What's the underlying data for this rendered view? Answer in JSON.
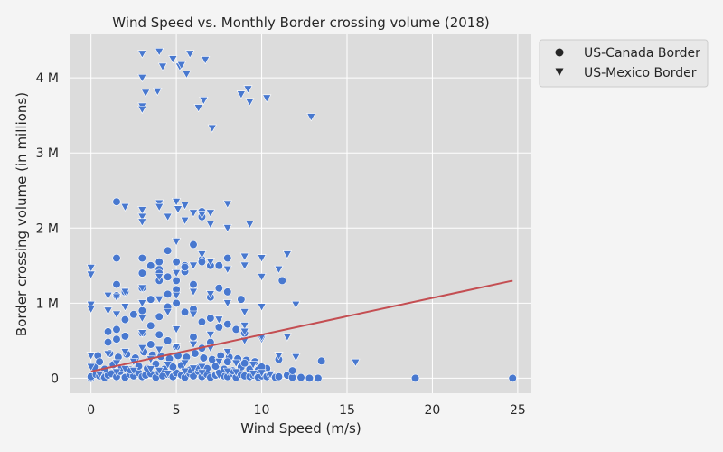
{
  "chart_data": {
    "type": "scatter",
    "title": "Wind Speed vs. Monthly Border crossing volume (2018)",
    "xlabel": "Wind Speed (m/s)",
    "ylabel": "Border crossing volume (in millions)",
    "xlim": [
      -1.2,
      25.8
    ],
    "ylim": [
      -0.2,
      4.58
    ],
    "x_ticks": [
      0,
      5,
      10,
      15,
      20,
      25
    ],
    "x_tick_labels": [
      "0",
      "5",
      "10",
      "15",
      "20",
      "25"
    ],
    "y_ticks": [
      0,
      1,
      2,
      3,
      4
    ],
    "y_tick_labels": [
      "0",
      "1 M",
      "2 M",
      "3 M",
      "4 M"
    ],
    "grid": true,
    "legend_position": "outside-top-right",
    "colors": {
      "points": "#4878cf",
      "trend": "#c44e52",
      "plot_bg": "#dcdcdc",
      "page_bg": "#f4f4f4",
      "grid": "#ffffff"
    },
    "series": [
      {
        "name": "US-Canada Border",
        "marker": "circle",
        "x": [
          0.0,
          0.0,
          0.3,
          0.5,
          0.6,
          0.8,
          1.0,
          1.2,
          1.5,
          1.7,
          2.0,
          2.3,
          2.5,
          2.8,
          3.0,
          3.2,
          3.5,
          3.8,
          4.0,
          4.2,
          4.5,
          4.8,
          5.0,
          5.3,
          5.5,
          5.8,
          6.0,
          6.3,
          6.5,
          6.8,
          7.0,
          7.3,
          7.5,
          7.8,
          8.0,
          8.3,
          8.5,
          8.8,
          9.0,
          9.3,
          9.5,
          9.8,
          10.0,
          10.3,
          10.5,
          10.8,
          11.0,
          11.5,
          11.8,
          12.3,
          12.8,
          13.3,
          0.2,
          0.8,
          1.3,
          1.8,
          2.3,
          2.8,
          3.3,
          3.8,
          4.3,
          4.8,
          5.3,
          5.8,
          6.3,
          6.8,
          7.3,
          7.8,
          8.3,
          8.8,
          9.3,
          9.8,
          10.3,
          11.8,
          0.4,
          1.1,
          1.6,
          2.1,
          2.6,
          3.1,
          3.6,
          4.1,
          4.6,
          5.1,
          5.6,
          6.1,
          6.6,
          7.1,
          7.6,
          8.1,
          8.6,
          9.1,
          9.6,
          0.5,
          1.0,
          1.5,
          2.0,
          3.0,
          3.5,
          4.0,
          4.5,
          5.0,
          6.0,
          6.5,
          7.0,
          8.0,
          9.0,
          10.0,
          11.0,
          13.5,
          1.0,
          1.5,
          2.0,
          2.5,
          3.0,
          3.5,
          4.0,
          4.5,
          5.0,
          5.5,
          6.0,
          6.5,
          7.0,
          7.5,
          8.0,
          8.5,
          9.0,
          1.5,
          2.0,
          3.0,
          3.5,
          4.0,
          4.5,
          5.0,
          6.0,
          7.0,
          1.5,
          3.0,
          3.5,
          4.0,
          4.5,
          5.0,
          5.5,
          6.5,
          7.5,
          8.0,
          8.8,
          1.5,
          3.0,
          4.0,
          4.5,
          5.0,
          5.5,
          6.5,
          7.0,
          7.5,
          8.0,
          11.2,
          3.0,
          4.0,
          5.5,
          6.0,
          6.5,
          1.5,
          6.5,
          19.0,
          24.7
        ],
        "y": [
          0.0,
          0.02,
          0.05,
          0.03,
          0.08,
          0.01,
          0.04,
          0.06,
          0.02,
          0.09,
          0.01,
          0.05,
          0.03,
          0.07,
          0.02,
          0.04,
          0.06,
          0.01,
          0.08,
          0.03,
          0.05,
          0.02,
          0.07,
          0.04,
          0.01,
          0.06,
          0.03,
          0.09,
          0.02,
          0.05,
          0.01,
          0.04,
          0.07,
          0.03,
          0.02,
          0.06,
          0.01,
          0.05,
          0.03,
          0.02,
          0.04,
          0.01,
          0.03,
          0.02,
          0.05,
          0.01,
          0.02,
          0.04,
          0.01,
          0.01,
          0.0,
          0.0,
          0.15,
          0.12,
          0.18,
          0.14,
          0.11,
          0.16,
          0.13,
          0.19,
          0.12,
          0.15,
          0.17,
          0.11,
          0.14,
          0.13,
          0.16,
          0.12,
          0.1,
          0.15,
          0.12,
          0.11,
          0.13,
          0.1,
          0.3,
          0.33,
          0.28,
          0.32,
          0.27,
          0.35,
          0.31,
          0.29,
          0.26,
          0.3,
          0.28,
          0.33,
          0.27,
          0.25,
          0.3,
          0.28,
          0.26,
          0.24,
          0.22,
          0.22,
          0.48,
          0.52,
          0.56,
          0.6,
          0.45,
          0.58,
          0.5,
          0.42,
          0.55,
          0.4,
          0.48,
          0.22,
          0.2,
          0.15,
          0.25,
          0.23,
          0.62,
          0.65,
          0.78,
          0.85,
          0.9,
          0.7,
          0.82,
          0.95,
          1.0,
          0.88,
          0.92,
          0.75,
          0.8,
          0.68,
          0.72,
          0.65,
          0.6,
          1.1,
          1.15,
          1.2,
          1.05,
          1.3,
          1.12,
          1.18,
          1.25,
          1.08,
          1.25,
          1.6,
          1.5,
          1.45,
          1.35,
          1.55,
          1.42,
          1.58,
          1.2,
          1.15,
          1.05,
          1.6,
          1.4,
          1.4,
          1.7,
          1.3,
          1.5,
          1.55,
          1.5,
          1.5,
          1.6,
          1.3,
          1.6,
          1.55,
          1.48,
          1.78,
          2.22,
          2.35,
          2.15,
          0.0,
          0.0
        ]
      },
      {
        "name": "US-Mexico Border",
        "marker": "triangle-down",
        "x": [
          3.0,
          4.0,
          4.2,
          4.8,
          5.8,
          6.7,
          3.0,
          5.2,
          5.3,
          5.6,
          6.3,
          8.8,
          9.2,
          3.2,
          3.9,
          6.6,
          9.3,
          10.3,
          3.0,
          3.0,
          12.9,
          7.1,
          0.0,
          1.5,
          3.0,
          4.0,
          4.5,
          5.0,
          5.5,
          6.0,
          6.5,
          7.0,
          8.0,
          9.3,
          2.0,
          4.0,
          5.1,
          3.0,
          0.0,
          1.0,
          2.0,
          3.0,
          4.0,
          5.0,
          6.0,
          7.0,
          8.0,
          9.0,
          10.0,
          11.0,
          0.0,
          1.0,
          2.0,
          3.0,
          4.0,
          5.0,
          6.0,
          7.0,
          8.0,
          9.0,
          10.0,
          12.0,
          0.0,
          1.5,
          3.0,
          4.5,
          6.0,
          7.5,
          9.0,
          10.0,
          11.5,
          5.0,
          6.5,
          3.0,
          5.5,
          7.0,
          8.0,
          9.0,
          10.0,
          11.5,
          0.0,
          1.0,
          2.0,
          3.0,
          4.0,
          5.0,
          6.0,
          7.0,
          8.0,
          9.0,
          10.0,
          11.0,
          12.0,
          1.5,
          2.5,
          3.5,
          4.5,
          5.5,
          6.5,
          7.5,
          8.5,
          9.5,
          0.5,
          1.5,
          2.5,
          3.5,
          4.5,
          5.5,
          6.5,
          7.5,
          8.5,
          9.5,
          10.5,
          15.5,
          0.0,
          2.0,
          4.0,
          6.0,
          8.0,
          10.0,
          3.0,
          5.0,
          7.0,
          9.0
        ],
        "y": [
          4.32,
          4.35,
          4.15,
          4.25,
          4.32,
          4.24,
          4.0,
          4.15,
          4.17,
          4.05,
          3.6,
          3.78,
          3.85,
          3.8,
          3.82,
          3.7,
          3.68,
          3.73,
          3.62,
          3.58,
          3.48,
          3.33,
          1.47,
          1.08,
          2.24,
          2.33,
          2.15,
          2.35,
          2.3,
          2.2,
          2.18,
          2.2,
          2.32,
          2.05,
          2.28,
          2.28,
          2.25,
          2.15,
          1.38,
          1.1,
          1.15,
          1.2,
          1.35,
          1.4,
          1.5,
          1.55,
          1.45,
          1.5,
          1.35,
          1.45,
          0.98,
          0.9,
          0.95,
          1.0,
          1.05,
          1.1,
          1.15,
          1.12,
          1.0,
          0.88,
          0.95,
          0.98,
          0.92,
          0.85,
          0.8,
          0.88,
          0.85,
          0.78,
          0.7,
          0.52,
          0.55,
          1.82,
          1.65,
          2.08,
          2.1,
          2.05,
          2.0,
          1.62,
          1.6,
          1.65,
          0.3,
          0.32,
          0.35,
          0.4,
          0.38,
          0.42,
          0.45,
          0.4,
          0.35,
          0.5,
          0.55,
          0.3,
          0.28,
          0.2,
          0.22,
          0.25,
          0.18,
          0.2,
          0.15,
          0.22,
          0.2,
          0.18,
          0.05,
          0.08,
          0.1,
          0.12,
          0.06,
          0.09,
          0.07,
          0.04,
          0.08,
          0.06,
          0.05,
          0.21,
          0.15,
          0.12,
          0.1,
          0.13,
          0.09,
          0.07,
          0.6,
          0.65,
          0.58,
          0.62
        ]
      }
    ],
    "trend_line": {
      "x": [
        0.0,
        24.7
      ],
      "y": [
        0.09,
        1.3
      ]
    }
  }
}
